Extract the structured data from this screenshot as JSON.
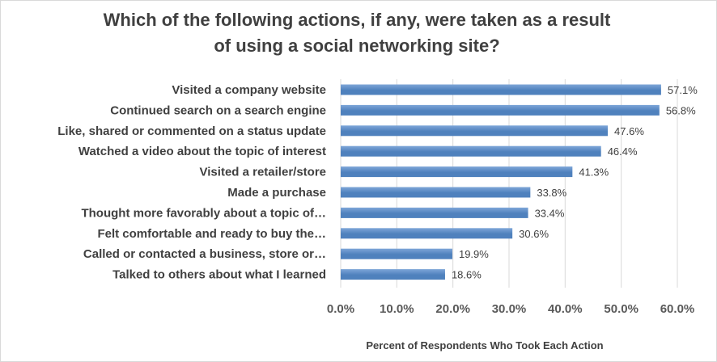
{
  "chart_data": {
    "type": "bar",
    "orientation": "horizontal",
    "title_lines": [
      "Which of the following actions, if any, were taken as a result",
      "of using a social networking site?"
    ],
    "xlabel": "Percent of Respondents Who Took Each Action",
    "ylabel": "",
    "categories": [
      "Visited a company website",
      "Continued search on a search engine",
      "Like, shared or commented on a status update",
      "Watched a video about the topic of interest",
      "Visited a retailer/store",
      "Made a purchase",
      "Thought more favorably about a topic of…",
      "Felt comfortable and ready to buy the…",
      "Called or contacted a business, store or…",
      "Talked to others about what I learned"
    ],
    "values": [
      57.1,
      56.8,
      47.6,
      46.4,
      41.3,
      33.8,
      33.4,
      30.6,
      19.9,
      18.6
    ],
    "value_labels": [
      "57.1%",
      "56.8%",
      "47.6%",
      "46.4%",
      "41.3%",
      "33.8%",
      "33.4%",
      "30.6%",
      "19.9%",
      "18.6%"
    ],
    "xlim": [
      0,
      60
    ],
    "x_ticks": [
      0,
      10,
      20,
      30,
      40,
      50,
      60
    ],
    "x_tick_labels": [
      "0.0%",
      "10.0%",
      "20.0%",
      "30.0%",
      "40.0%",
      "50.0%",
      "60.0%"
    ],
    "grid": true,
    "legend": "none",
    "bar_color": "#4f81bd",
    "bar_gradient_light": "#7ea6d8"
  }
}
